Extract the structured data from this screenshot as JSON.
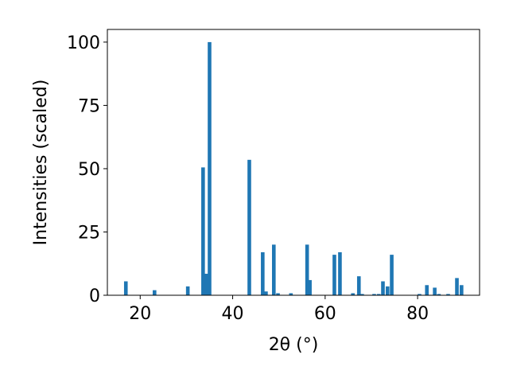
{
  "chart_data": {
    "type": "bar",
    "x": [
      16.9,
      23.1,
      30.3,
      33.6,
      34.3,
      35.0,
      43.6,
      46.5,
      47.2,
      48.9,
      49.8,
      52.6,
      56.1,
      56.7,
      62.0,
      63.2,
      66.0,
      67.3,
      68.0,
      70.6,
      71.6,
      72.5,
      73.5,
      74.4,
      80.4,
      82.0,
      83.7,
      84.6,
      86.6,
      88.5,
      89.5
    ],
    "values": [
      5.5,
      2,
      3.5,
      50.5,
      8.5,
      100,
      53.5,
      17,
      1.5,
      20,
      0.8,
      0.8,
      20,
      6,
      16,
      17,
      0.8,
      7.5,
      0.5,
      0.5,
      0.5,
      5.5,
      3.5,
      16,
      0.5,
      4,
      3,
      0.5,
      0.5,
      6.8,
      4
    ],
    "color": "#1f77b4",
    "xlabel": "2θ (°)",
    "ylabel": "Intensities (scaled)",
    "xlim": [
      12.9,
      93.4
    ],
    "ylim": [
      0,
      105
    ],
    "xticks": [
      20,
      40,
      60,
      80
    ],
    "yticks": [
      0,
      25,
      50,
      75,
      100
    ]
  }
}
